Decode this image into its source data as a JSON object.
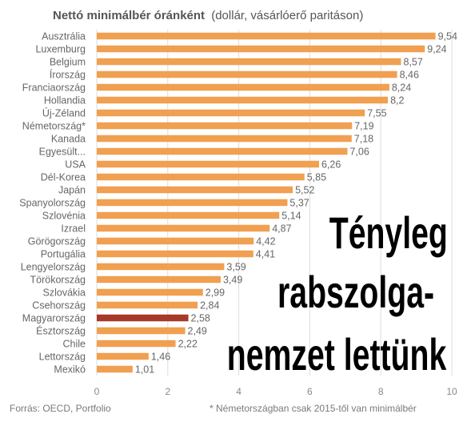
{
  "chart_data": {
    "type": "bar",
    "orientation": "horizontal",
    "title": "Nettó minimálbér óránként",
    "subtitle": "(dollár, vásárlóerő paritáson)",
    "categories": [
      "Ausztrália",
      "Luxemburg",
      "Belgium",
      "Írország",
      "Franciaország",
      "Hollandia",
      "Új-Zéland",
      "Németország*",
      "Kanada",
      "Egyesült...",
      "USA",
      "Dél-Korea",
      "Japán",
      "Spanyolország",
      "Szlovénia",
      "Izrael",
      "Görögország",
      "Portugália",
      "Lengyelország",
      "Törökország",
      "Szlovákia",
      "Csehország",
      "Magyarország",
      "Észtország",
      "Chile",
      "Lettország",
      "Mexikó"
    ],
    "values": [
      9.54,
      9.24,
      8.57,
      8.46,
      8.24,
      8.2,
      7.55,
      7.19,
      7.18,
      7.06,
      6.26,
      5.85,
      5.52,
      5.37,
      5.14,
      4.87,
      4.42,
      4.41,
      3.59,
      3.49,
      2.99,
      2.84,
      2.58,
      2.49,
      2.22,
      1.46,
      1.01
    ],
    "value_labels": [
      "9,54",
      "9,24",
      "8,57",
      "8,46",
      "8,24",
      "8,2",
      "7,55",
      "7,19",
      "7,18",
      "7,06",
      "6,26",
      "5,85",
      "5,52",
      "5,37",
      "5,14",
      "4,87",
      "4,42",
      "4,41",
      "3,59",
      "3,49",
      "2,99",
      "2,84",
      "2,58",
      "2,49",
      "2,22",
      "1,46",
      "1,01"
    ],
    "xlim": [
      0,
      10
    ],
    "xticks": [
      0,
      2,
      4,
      6,
      8,
      10
    ],
    "grid": true,
    "highlight_category": "Magyarország",
    "colors": {
      "bar": "#F0A050",
      "highlight": "#A8382A",
      "grid": "#DDDDDD",
      "text": "#666666",
      "title": "#555555"
    }
  },
  "overlay_text": [
    "Tényleg",
    "rabszolga-",
    "nemzet lettünk"
  ],
  "footer": {
    "source": "Forrás: OECD, Portfolio",
    "note": "* Németországban csak 2015-től van minimálbér"
  }
}
